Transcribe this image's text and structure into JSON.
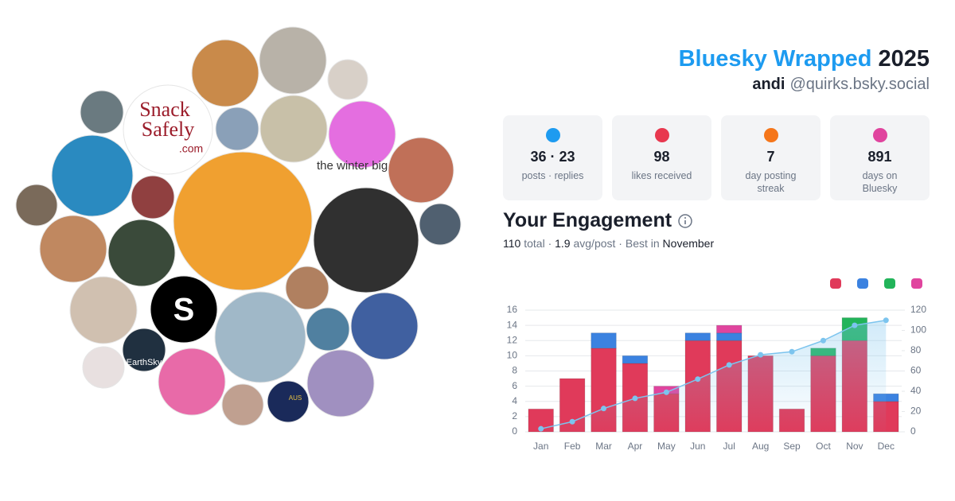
{
  "header": {
    "title": "Bluesky Wrapped",
    "year": "2025",
    "display_name": "andi",
    "handle": "@quirks.bsky.social"
  },
  "stats": [
    {
      "value": "36 · 23",
      "label": "posts · replies",
      "icon_color": "#1d9bf0"
    },
    {
      "value": "98",
      "label": "likes received",
      "icon_color": "#e8384f"
    },
    {
      "value": "7",
      "label": "day posting streak",
      "icon_color": "#f5761a"
    },
    {
      "value": "891",
      "label": "days on Bluesky",
      "icon_color": "#e0449e"
    }
  ],
  "engagement": {
    "title": "Your Engagement",
    "total": "110",
    "total_label": "total ·",
    "avg": "1.9",
    "avg_label": "avg/post · Best in",
    "best_month": "November"
  },
  "avatar_texts": {
    "snack": "Snack",
    "safely": "Safely",
    "com": ".com",
    "alt": "the winter big",
    "s": "S",
    "earthsky": "EarthSky",
    "aus": "AUS"
  },
  "chart_data": {
    "type": "bar",
    "stacked": true,
    "categories": [
      "Jan",
      "Feb",
      "Mar",
      "Apr",
      "May",
      "Jun",
      "Jul",
      "Aug",
      "Sep",
      "Oct",
      "Nov",
      "Dec"
    ],
    "series": [
      {
        "color": "#e03a5a",
        "values": [
          3,
          7,
          11,
          9,
          5,
          12,
          12,
          10,
          3,
          10,
          12,
          4
        ]
      },
      {
        "color": "#3b82e0",
        "values": [
          0,
          0,
          2,
          1,
          0,
          1,
          1,
          0,
          0,
          0,
          0,
          1
        ]
      },
      {
        "color": "#22b45a",
        "values": [
          0,
          0,
          0,
          0,
          0,
          0,
          0,
          0,
          0,
          1,
          3,
          0
        ]
      },
      {
        "color": "#e0449e",
        "values": [
          0,
          0,
          0,
          0,
          1,
          0,
          1,
          0,
          0,
          0,
          0,
          0
        ]
      },
      {
        "type": "line",
        "axis": "y2",
        "color": "#7cc4ee",
        "values": [
          3,
          10,
          23,
          33,
          39,
          52,
          66,
          76,
          79,
          90,
          105,
          110
        ]
      }
    ],
    "ylim": [
      0,
      16
    ],
    "yticks": [
      0,
      2,
      4,
      6,
      8,
      10,
      12,
      14,
      16
    ],
    "y2lim": [
      0,
      120
    ],
    "y2ticks": [
      0,
      20,
      40,
      60,
      80,
      100,
      120
    ],
    "grid": true
  }
}
